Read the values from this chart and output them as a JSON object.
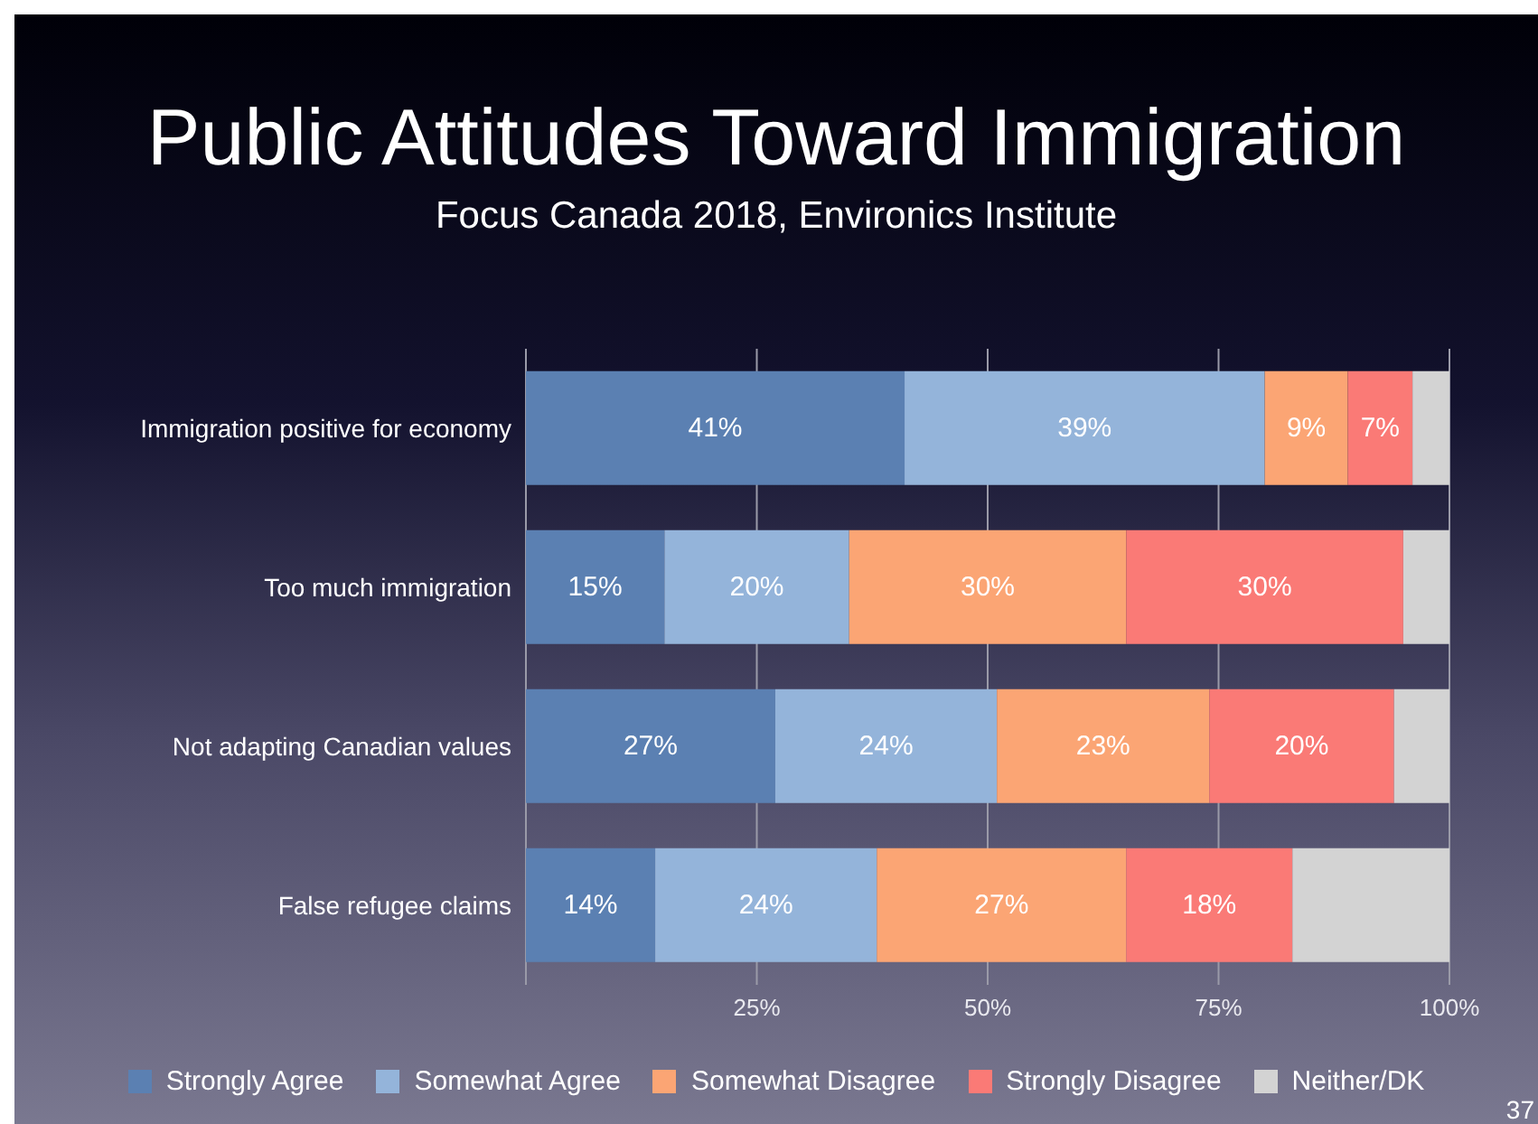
{
  "chart_data": {
    "type": "bar",
    "orientation": "horizontal",
    "stacked": true,
    "title": "Public Attitudes Toward Immigration",
    "subtitle": "Focus Canada 2018, Environics Institute",
    "categories": [
      "Immigration positive for economy",
      "Too much immigration",
      "Not adapting Canadian values",
      "False refugee claims"
    ],
    "series": [
      {
        "name": "Strongly Agree",
        "color": "#5b80b2",
        "values": [
          41,
          15,
          27,
          14
        ],
        "value_labels": [
          "41%",
          "15%",
          "27%",
          "14%"
        ]
      },
      {
        "name": "Somewhat Agree",
        "color": "#94b4da",
        "values": [
          39,
          20,
          24,
          24
        ],
        "value_labels": [
          "39%",
          "20%",
          "24%",
          "24%"
        ]
      },
      {
        "name": "Somewhat Disagree",
        "color": "#fba574",
        "values": [
          9,
          30,
          23,
          27
        ],
        "value_labels": [
          "9%",
          "30%",
          "23%",
          "27%"
        ]
      },
      {
        "name": "Strongly Disagree",
        "color": "#fa7a76",
        "values": [
          7,
          30,
          20,
          18
        ],
        "value_labels": [
          "7%",
          "30%",
          "20%",
          "18%"
        ]
      },
      {
        "name": "Neither/DK",
        "color": "#d3d3d3",
        "values": [
          4,
          5,
          6,
          17
        ],
        "value_labels": [
          null,
          null,
          null,
          null
        ]
      }
    ],
    "xlim": [
      0,
      100
    ],
    "xticks": [
      {
        "value": 0,
        "label": null
      },
      {
        "value": 25,
        "label": "25%"
      },
      {
        "value": 50,
        "label": "50%"
      },
      {
        "value": 75,
        "label": "75%"
      },
      {
        "value": 100,
        "label": "100%"
      }
    ],
    "grid": "x",
    "legend": "bottom",
    "annotations": [
      "37"
    ]
  }
}
